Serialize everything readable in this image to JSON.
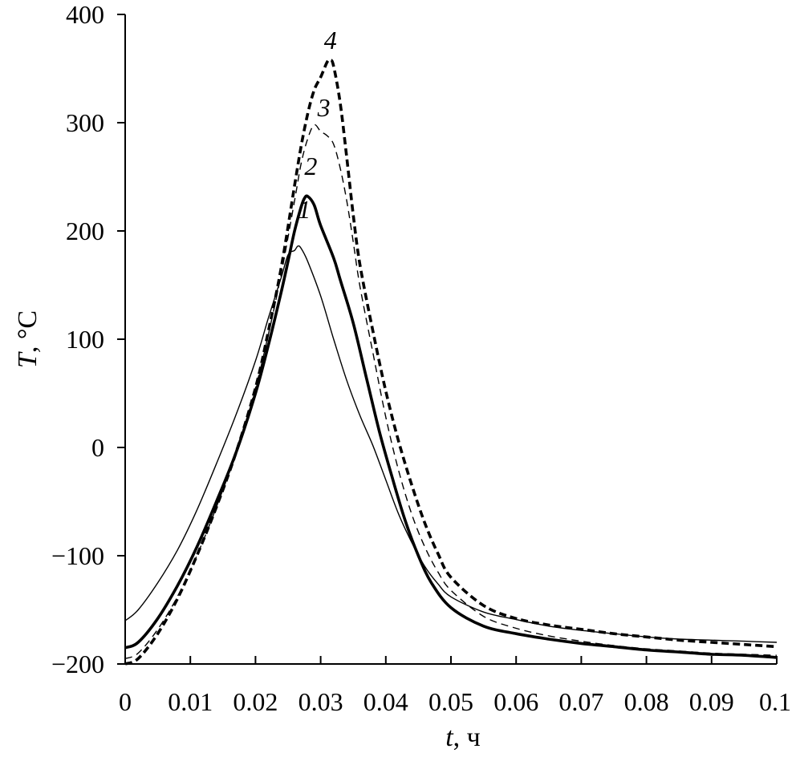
{
  "chart_data": {
    "type": "line",
    "xlabel_var": "t",
    "xlabel_unit": ", ч",
    "ylabel_var": "T",
    "ylabel_unit": ", °C",
    "xlim": [
      0,
      0.1
    ],
    "ylim": [
      -200,
      400
    ],
    "x_ticks": [
      "0",
      "0.01",
      "0.02",
      "0.03",
      "0.04",
      "0.05",
      "0.06",
      "0.07",
      "0.08",
      "0.09",
      "0.1"
    ],
    "y_ticks": [
      "−200",
      "−100",
      "0",
      "100",
      "200",
      "300",
      "400"
    ],
    "grid": false,
    "series": [
      {
        "label": "1",
        "style": "thin-solid",
        "points": [
          [
            0,
            -160
          ],
          [
            0.002,
            -150
          ],
          [
            0.005,
            -125
          ],
          [
            0.008,
            -95
          ],
          [
            0.011,
            -58
          ],
          [
            0.014,
            -15
          ],
          [
            0.017,
            30
          ],
          [
            0.02,
            80
          ],
          [
            0.022,
            120
          ],
          [
            0.024,
            158
          ],
          [
            0.025,
            178
          ],
          [
            0.026,
            182
          ],
          [
            0.0265,
            186
          ],
          [
            0.027,
            184
          ],
          [
            0.028,
            172
          ],
          [
            0.03,
            140
          ],
          [
            0.032,
            100
          ],
          [
            0.034,
            62
          ],
          [
            0.036,
            30
          ],
          [
            0.038,
            2
          ],
          [
            0.04,
            -30
          ],
          [
            0.042,
            -62
          ],
          [
            0.044,
            -88
          ],
          [
            0.046,
            -110
          ],
          [
            0.048,
            -126
          ],
          [
            0.05,
            -138
          ],
          [
            0.055,
            -152
          ],
          [
            0.06,
            -159
          ],
          [
            0.065,
            -165
          ],
          [
            0.07,
            -169
          ],
          [
            0.075,
            -172
          ],
          [
            0.08,
            -175
          ],
          [
            0.085,
            -177
          ],
          [
            0.09,
            -178
          ],
          [
            0.095,
            -179
          ],
          [
            0.1,
            -180
          ]
        ]
      },
      {
        "label": "2",
        "style": "thick-solid",
        "points": [
          [
            0,
            -185
          ],
          [
            0.002,
            -180
          ],
          [
            0.005,
            -158
          ],
          [
            0.008,
            -128
          ],
          [
            0.011,
            -92
          ],
          [
            0.014,
            -50
          ],
          [
            0.017,
            -5
          ],
          [
            0.02,
            50
          ],
          [
            0.022,
            95
          ],
          [
            0.024,
            145
          ],
          [
            0.025,
            172
          ],
          [
            0.026,
            200
          ],
          [
            0.027,
            222
          ],
          [
            0.0275,
            230
          ],
          [
            0.028,
            232
          ],
          [
            0.029,
            224
          ],
          [
            0.03,
            205
          ],
          [
            0.032,
            175
          ],
          [
            0.033,
            155
          ],
          [
            0.035,
            115
          ],
          [
            0.037,
            65
          ],
          [
            0.039,
            15
          ],
          [
            0.041,
            -28
          ],
          [
            0.043,
            -68
          ],
          [
            0.045,
            -100
          ],
          [
            0.047,
            -125
          ],
          [
            0.05,
            -148
          ],
          [
            0.055,
            -165
          ],
          [
            0.06,
            -172
          ],
          [
            0.065,
            -177
          ],
          [
            0.07,
            -181
          ],
          [
            0.075,
            -184
          ],
          [
            0.08,
            -187
          ],
          [
            0.085,
            -189
          ],
          [
            0.09,
            -191
          ],
          [
            0.095,
            -192
          ],
          [
            0.1,
            -194
          ]
        ]
      },
      {
        "label": "3",
        "style": "thin-dashed",
        "points": [
          [
            0,
            -195
          ],
          [
            0.002,
            -190
          ],
          [
            0.005,
            -168
          ],
          [
            0.008,
            -138
          ],
          [
            0.011,
            -100
          ],
          [
            0.014,
            -55
          ],
          [
            0.017,
            -5
          ],
          [
            0.02,
            55
          ],
          [
            0.022,
            105
          ],
          [
            0.024,
            162
          ],
          [
            0.026,
            228
          ],
          [
            0.027,
            262
          ],
          [
            0.028,
            285
          ],
          [
            0.029,
            298
          ],
          [
            0.03,
            292
          ],
          [
            0.031,
            288
          ],
          [
            0.032,
            280
          ],
          [
            0.033,
            258
          ],
          [
            0.034,
            228
          ],
          [
            0.035,
            190
          ],
          [
            0.036,
            150
          ],
          [
            0.038,
            88
          ],
          [
            0.04,
            28
          ],
          [
            0.042,
            -22
          ],
          [
            0.044,
            -62
          ],
          [
            0.046,
            -92
          ],
          [
            0.048,
            -115
          ],
          [
            0.05,
            -132
          ],
          [
            0.055,
            -156
          ],
          [
            0.06,
            -167
          ],
          [
            0.065,
            -174
          ],
          [
            0.07,
            -179
          ],
          [
            0.075,
            -183
          ],
          [
            0.08,
            -186
          ],
          [
            0.085,
            -188
          ],
          [
            0.09,
            -190
          ],
          [
            0.095,
            -191
          ],
          [
            0.1,
            -192
          ]
        ]
      },
      {
        "label": "4",
        "style": "thick-dashed",
        "points": [
          [
            0,
            -200
          ],
          [
            0.002,
            -195
          ],
          [
            0.005,
            -172
          ],
          [
            0.008,
            -140
          ],
          [
            0.011,
            -100
          ],
          [
            0.014,
            -55
          ],
          [
            0.017,
            -5
          ],
          [
            0.02,
            55
          ],
          [
            0.022,
            108
          ],
          [
            0.024,
            168
          ],
          [
            0.026,
            242
          ],
          [
            0.027,
            278
          ],
          [
            0.028,
            308
          ],
          [
            0.029,
            330
          ],
          [
            0.03,
            342
          ],
          [
            0.031,
            356
          ],
          [
            0.0315,
            358
          ],
          [
            0.032,
            352
          ],
          [
            0.033,
            318
          ],
          [
            0.034,
            268
          ],
          [
            0.035,
            215
          ],
          [
            0.036,
            170
          ],
          [
            0.038,
            108
          ],
          [
            0.04,
            52
          ],
          [
            0.042,
            5
          ],
          [
            0.044,
            -35
          ],
          [
            0.046,
            -70
          ],
          [
            0.048,
            -98
          ],
          [
            0.05,
            -120
          ],
          [
            0.055,
            -146
          ],
          [
            0.06,
            -158
          ],
          [
            0.065,
            -164
          ],
          [
            0.07,
            -168
          ],
          [
            0.075,
            -172
          ],
          [
            0.08,
            -175
          ],
          [
            0.085,
            -178
          ],
          [
            0.09,
            -180
          ],
          [
            0.095,
            -182
          ],
          [
            0.1,
            -184
          ]
        ]
      }
    ]
  }
}
